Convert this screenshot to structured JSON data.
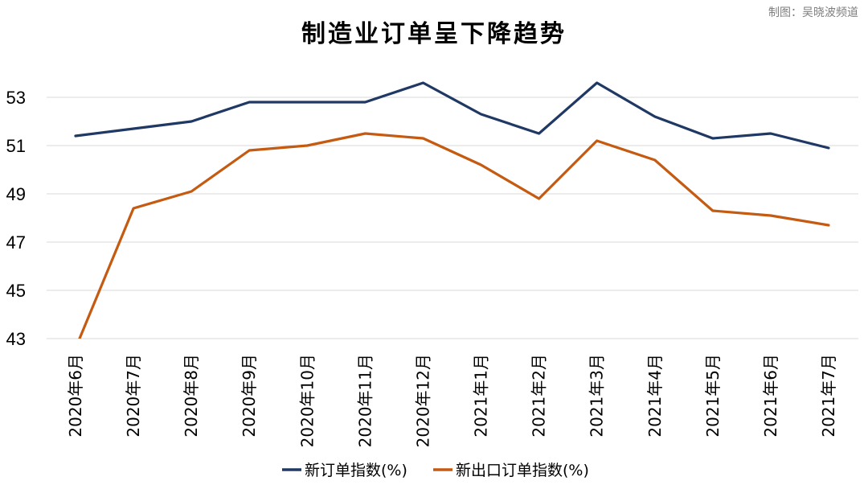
{
  "credit": "制图：吴晓波频道",
  "chart_data": {
    "type": "line",
    "title": "制造业订单呈下降趋势",
    "xlabel": "",
    "ylabel": "",
    "categories": [
      "2020年6月",
      "2020年7月",
      "2020年8月",
      "2020年9月",
      "2020年10月",
      "2020年11月",
      "2020年12月",
      "2021年1月",
      "2021年2月",
      "2021年3月",
      "2021年4月",
      "2021年5月",
      "2021年6月",
      "2021年7月"
    ],
    "ylim": [
      43,
      54
    ],
    "yticks": [
      "43",
      "45",
      "47",
      "49",
      "51",
      "53"
    ],
    "grid": true,
    "legend_position": "bottom",
    "series": [
      {
        "name": "新订单指数(%)",
        "color": "#203864",
        "values": [
          51.4,
          51.7,
          52.0,
          52.8,
          52.8,
          52.8,
          53.6,
          52.3,
          51.5,
          53.6,
          52.2,
          51.3,
          51.5,
          50.9
        ]
      },
      {
        "name": "新出口订单指数(%)",
        "color": "#c55a11",
        "values": [
          42.6,
          48.4,
          49.1,
          50.8,
          51.0,
          51.5,
          51.3,
          50.2,
          48.8,
          51.2,
          50.4,
          48.3,
          48.1,
          47.7
        ]
      }
    ]
  }
}
